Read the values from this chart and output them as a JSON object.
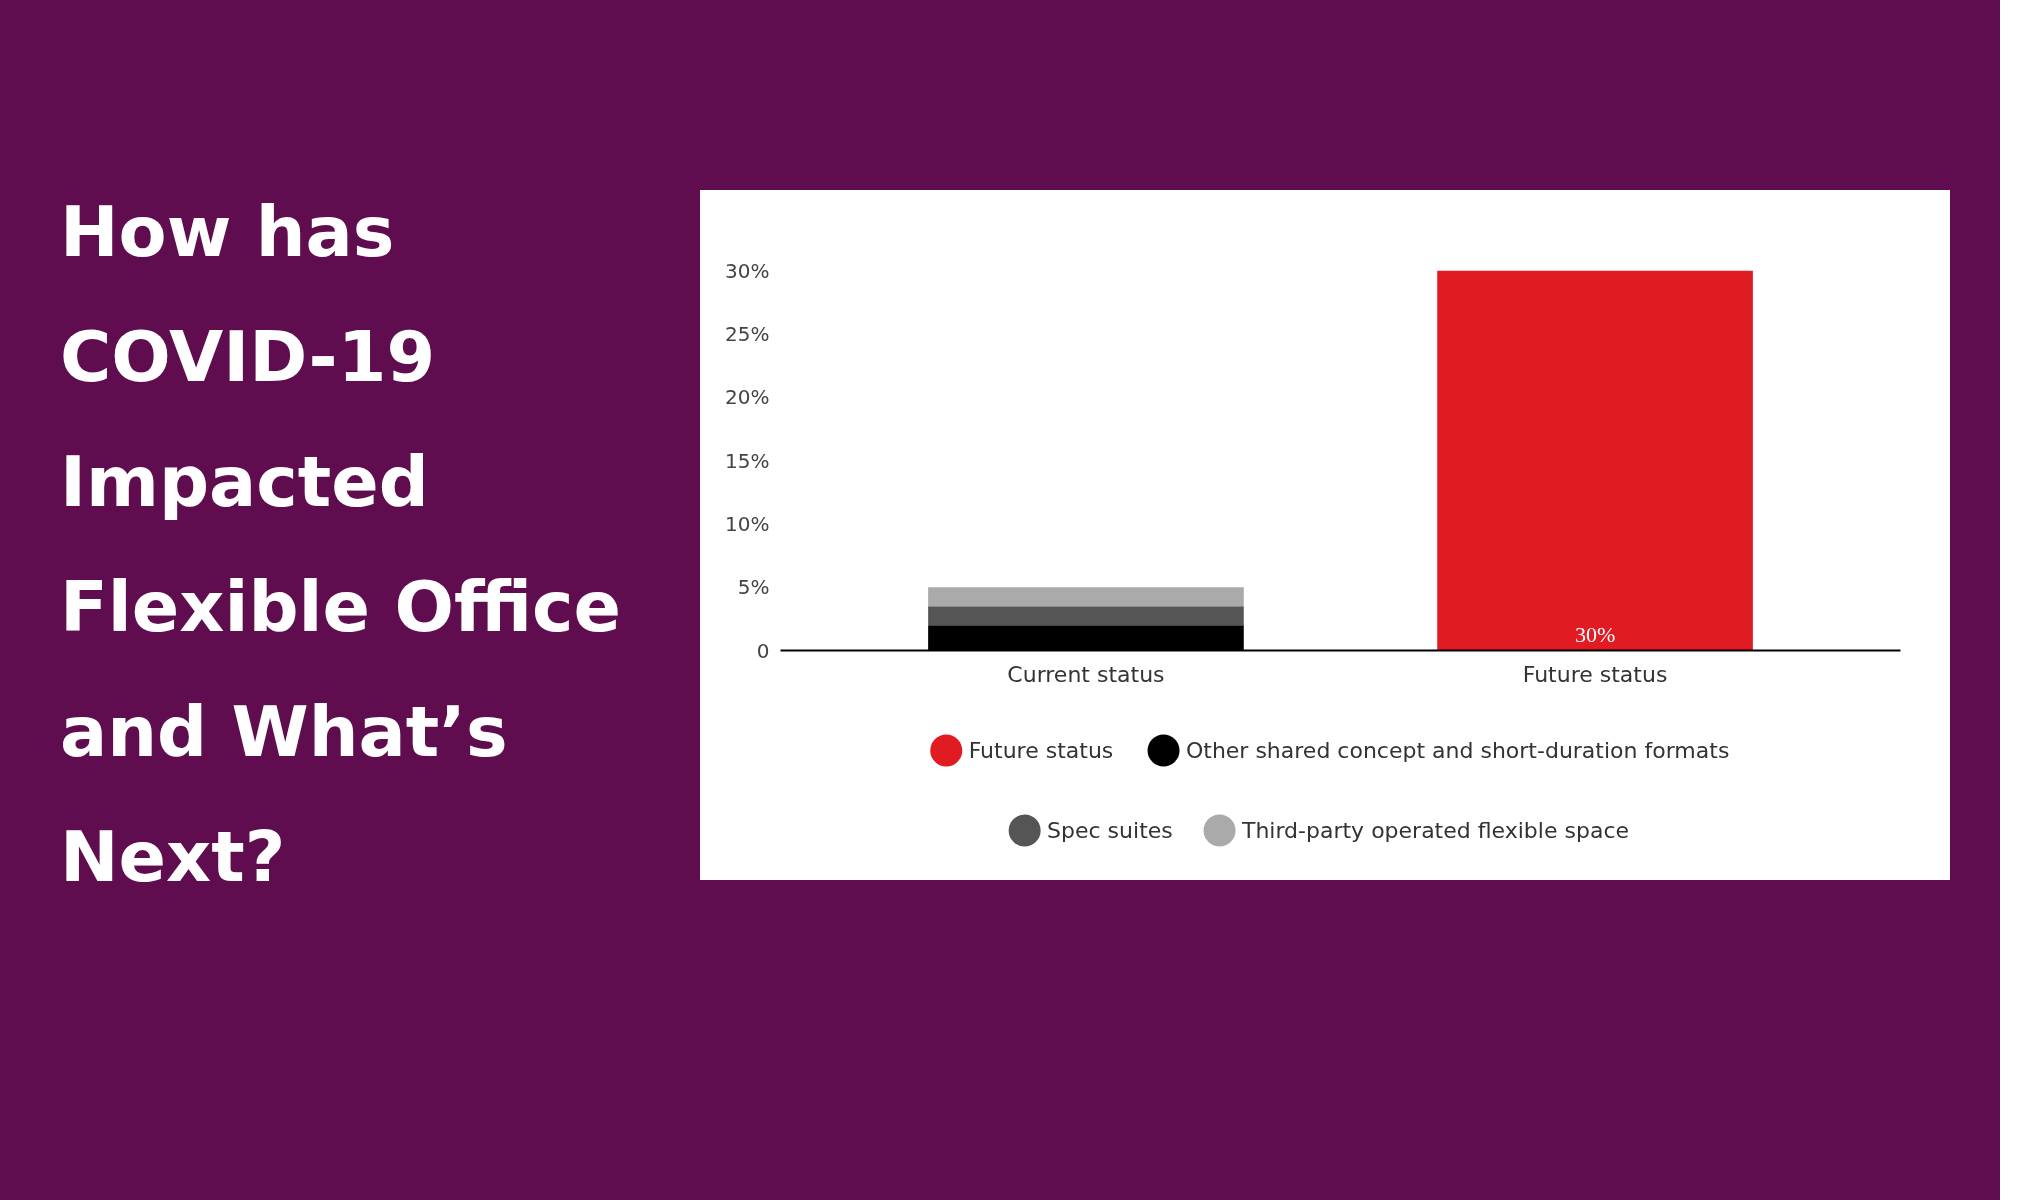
{
  "chart_data": {
    "type": "bar",
    "title": "How has COVID-19 Impacted Flexible Office and What’s Next?",
    "categories": [
      "Current status",
      "Future status"
    ],
    "stacked": true,
    "series": [
      {
        "name": "Future status",
        "color": "#e01b22",
        "values": [
          null,
          30
        ],
        "value_labels": [
          null,
          "30%"
        ]
      },
      {
        "name": "Other shared concept and short-duration formats",
        "color": "#000000",
        "values": [
          2,
          null
        ]
      },
      {
        "name": "Spec suites",
        "color": "#555555",
        "values": [
          1.5,
          null
        ]
      },
      {
        "name": "Third-party operated flexible space",
        "color": "#aaaaaa",
        "values": [
          1.5,
          null
        ]
      }
    ],
    "ylim": [
      0,
      30
    ],
    "yticks": [
      {
        "value": 0,
        "label": "0"
      },
      {
        "value": 5,
        "label": "5%"
      },
      {
        "value": 10,
        "label": "10%"
      },
      {
        "value": 15,
        "label": "15%"
      },
      {
        "value": 20,
        "label": "20%"
      },
      {
        "value": 25,
        "label": "25%"
      },
      {
        "value": 30,
        "label": "30%"
      }
    ],
    "grid": false,
    "legend": "bottom"
  }
}
